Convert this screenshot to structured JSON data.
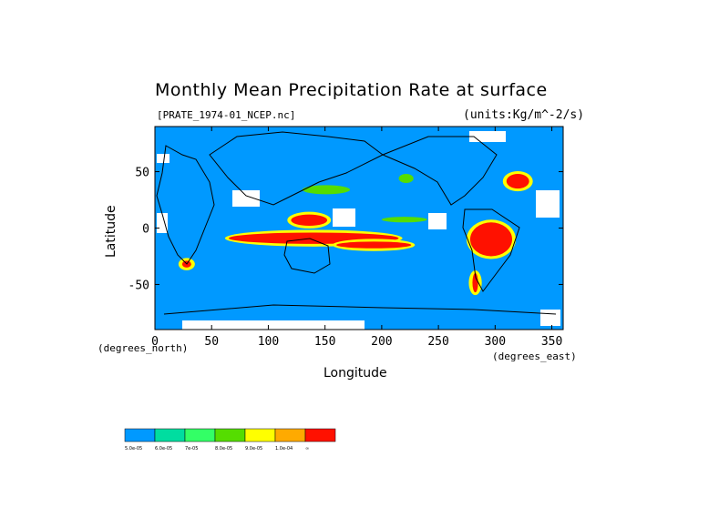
{
  "chart_data": {
    "type": "heatmap",
    "title": "Monthly Mean Precipitation Rate at surface",
    "file_label": "[PRATE_1974-01_NCEP.nc]",
    "units_label": "(units:Kg/m^-2/s)",
    "xlabel": "Longitude",
    "ylabel": "Latitude",
    "x_unit_label": "(degrees_east)",
    "y_unit_label": "(degrees_north)",
    "xlim": [
      0,
      360
    ],
    "ylim": [
      -90,
      90
    ],
    "x_ticks": [
      0,
      50,
      100,
      150,
      200,
      250,
      300,
      350
    ],
    "y_ticks": [
      -50,
      0,
      50
    ],
    "x_tick_labels": [
      "0",
      "50",
      "100",
      "150",
      "200",
      "250",
      "300",
      "350"
    ],
    "y_tick_labels": [
      "-50",
      "0",
      "50"
    ],
    "colorbar": {
      "colors": [
        "#0099ff",
        "#00dda0",
        "#33ff66",
        "#55dd00",
        "#ffff00",
        "#ffaa00",
        "#ff1100"
      ],
      "labels": [
        "5.0e-05",
        "6.0e-05",
        "7e-05",
        "8.0e-05",
        "9.0e-05",
        "1.0e-04",
        "∞"
      ]
    },
    "background_color": "#0099ff",
    "precip_regions": [
      {
        "level": 6,
        "lon": [
          65,
          215
        ],
        "lat": [
          -14,
          -4
        ]
      },
      {
        "level": 6,
        "lon": [
          160,
          226
        ],
        "lat": [
          -18,
          -12
        ]
      },
      {
        "level": 6,
        "lon": [
          278,
          315
        ],
        "lat": [
          -25,
          5
        ]
      },
      {
        "level": 6,
        "lon": [
          310,
          330
        ],
        "lat": [
          35,
          48
        ]
      },
      {
        "level": 6,
        "lon": [
          120,
          152
        ],
        "lat": [
          2,
          12
        ]
      },
      {
        "level": 6,
        "lon": [
          24,
          32
        ],
        "lat": [
          -35,
          -29
        ]
      },
      {
        "level": 6,
        "lon": [
          280,
          285
        ],
        "lat": [
          -57,
          -40
        ]
      },
      {
        "level": 3,
        "lon": [
          130,
          172
        ],
        "lat": [
          30,
          38
        ]
      },
      {
        "level": 3,
        "lon": [
          200,
          240
        ],
        "lat": [
          5,
          10
        ]
      },
      {
        "level": 3,
        "lon": [
          215,
          228
        ],
        "lat": [
          40,
          48
        ]
      }
    ]
  }
}
